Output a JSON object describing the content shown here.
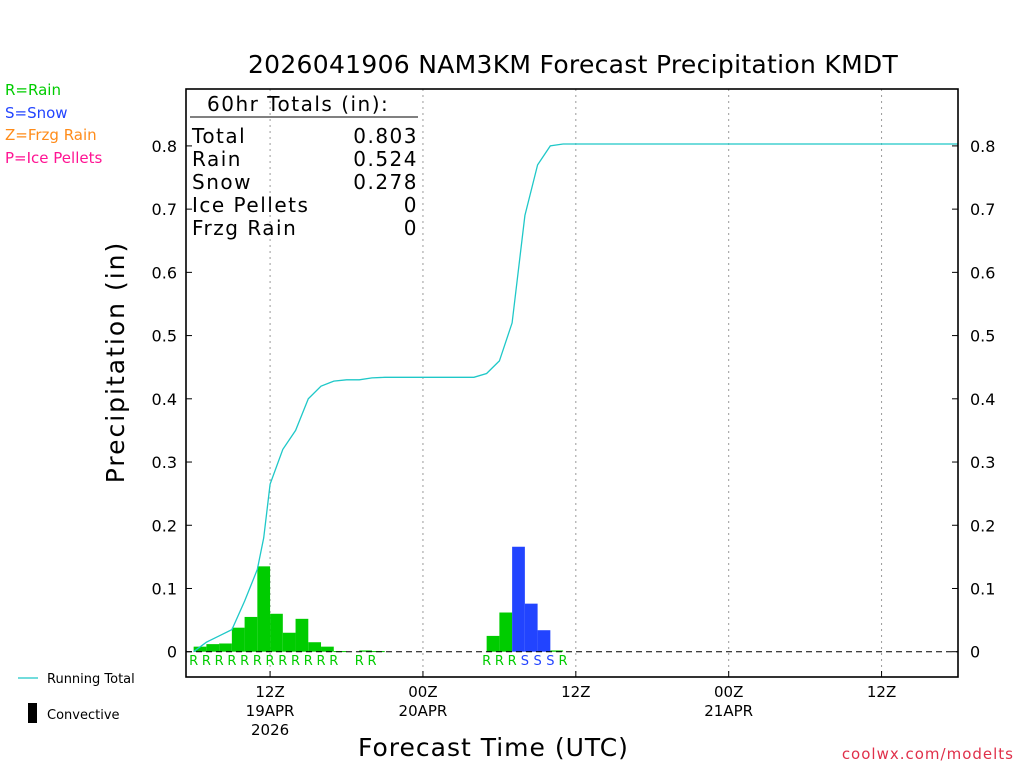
{
  "header": {
    "title": "2026041906 NAM3KM Forecast Precipitation KMDT"
  },
  "ptype_legend": [
    {
      "code": "R",
      "label": "R=Rain",
      "color": "#00cc00"
    },
    {
      "code": "S",
      "label": "S=Snow",
      "color": "#2244ff"
    },
    {
      "code": "Z",
      "label": "Z=Frzg Rain",
      "color": "#ff8c1a"
    },
    {
      "code": "P",
      "label": "P=Ice Pellets",
      "color": "#ff1493"
    }
  ],
  "totals_box": {
    "heading": "60hr Totals (in):",
    "rows": [
      {
        "label": "Total",
        "value": "0.803"
      },
      {
        "label": "Rain",
        "value": "0.524"
      },
      {
        "label": "Snow",
        "value": "0.278"
      },
      {
        "label": "Ice Pellets",
        "value": "0"
      },
      {
        "label": "Frzg Rain",
        "value": "0"
      }
    ]
  },
  "bottom_legend": {
    "running_total": "Running Total",
    "convective": "Convective"
  },
  "credit": "coolwx.com/modelts",
  "colors": {
    "running_total": "#1fc8c8",
    "rain": "#00cc00",
    "snow": "#2244ff",
    "frame": "#000000"
  },
  "chart_data": {
    "type": "bar",
    "title": "2026041906 NAM3KM Forecast Precipitation KMDT",
    "xlabel": "Forecast Time (UTC)",
    "ylabel": "Precipitation (in)",
    "ylim": [
      -0.04,
      0.89
    ],
    "yticks": [
      0,
      0.1,
      0.2,
      0.3,
      0.4,
      0.5,
      0.6,
      0.7,
      0.8
    ],
    "ytick_labels": [
      "0",
      "0.1",
      "0.2",
      "0.3",
      "0.4",
      "0.5",
      "0.6",
      "0.7",
      "0.8"
    ],
    "x_unit": "forecast hour",
    "xlim": [
      -0.6,
      60
    ],
    "xticks": [
      {
        "hour": 6,
        "lines": [
          "12Z",
          "19APR",
          "2026"
        ]
      },
      {
        "hour": 18,
        "lines": [
          "00Z",
          "20APR"
        ]
      },
      {
        "hour": 30,
        "lines": [
          "12Z"
        ]
      },
      {
        "hour": 42,
        "lines": [
          "00Z",
          "21APR"
        ]
      },
      {
        "hour": 54,
        "lines": [
          "12Z"
        ]
      }
    ],
    "grid": "vertical-dotted",
    "hourly_bars": [
      {
        "hour": 1,
        "value": 0.008,
        "type": "R"
      },
      {
        "hour": 2,
        "value": 0.012,
        "type": "R"
      },
      {
        "hour": 3,
        "value": 0.013,
        "type": "R"
      },
      {
        "hour": 4,
        "value": 0.038,
        "type": "R"
      },
      {
        "hour": 5,
        "value": 0.055,
        "type": "R"
      },
      {
        "hour": 6,
        "value": 0.135,
        "type": "R"
      },
      {
        "hour": 7,
        "value": 0.06,
        "type": "R"
      },
      {
        "hour": 8,
        "value": 0.03,
        "type": "R"
      },
      {
        "hour": 9,
        "value": 0.052,
        "type": "R"
      },
      {
        "hour": 10,
        "value": 0.015,
        "type": "R"
      },
      {
        "hour": 11,
        "value": 0.008,
        "type": "R"
      },
      {
        "hour": 12,
        "value": 0.001,
        "type": "R"
      },
      {
        "hour": 14,
        "value": 0.002,
        "type": "R"
      },
      {
        "hour": 15,
        "value": 0.001,
        "type": "R"
      },
      {
        "hour": 24,
        "value": 0.025,
        "type": "R"
      },
      {
        "hour": 25,
        "value": 0.062,
        "type": "R"
      },
      {
        "hour": 26,
        "value": 0.166,
        "type": "S"
      },
      {
        "hour": 27,
        "value": 0.076,
        "type": "S"
      },
      {
        "hour": 28,
        "value": 0.034,
        "type": "S"
      },
      {
        "hour": 29,
        "value": 0.002,
        "type": "R"
      }
    ],
    "ptype_row": [
      {
        "hour": 0,
        "type": "R"
      },
      {
        "hour": 1,
        "type": "R"
      },
      {
        "hour": 2,
        "type": "R"
      },
      {
        "hour": 3,
        "type": "R"
      },
      {
        "hour": 4,
        "type": "R"
      },
      {
        "hour": 5,
        "type": "R"
      },
      {
        "hour": 6,
        "type": "R"
      },
      {
        "hour": 7,
        "type": "R"
      },
      {
        "hour": 8,
        "type": "R"
      },
      {
        "hour": 9,
        "type": "R"
      },
      {
        "hour": 10,
        "type": "R"
      },
      {
        "hour": 11,
        "type": "R"
      },
      {
        "hour": 13,
        "type": "R"
      },
      {
        "hour": 14,
        "type": "R"
      },
      {
        "hour": 23,
        "type": "R"
      },
      {
        "hour": 24,
        "type": "R"
      },
      {
        "hour": 25,
        "type": "R"
      },
      {
        "hour": 26,
        "type": "S"
      },
      {
        "hour": 27,
        "type": "S"
      },
      {
        "hour": 28,
        "type": "S"
      },
      {
        "hour": 29,
        "type": "R"
      }
    ],
    "running_total": {
      "name": "Running Total",
      "x": [
        0,
        1,
        2,
        3,
        4,
        5,
        5.5,
        6,
        7,
        8,
        9,
        10,
        11,
        12,
        13,
        14,
        15,
        18,
        21,
        22,
        23,
        24,
        25,
        26,
        27,
        28,
        29,
        30,
        40,
        50,
        60
      ],
      "y": [
        0,
        0.015,
        0.025,
        0.035,
        0.08,
        0.13,
        0.18,
        0.265,
        0.32,
        0.35,
        0.4,
        0.42,
        0.428,
        0.43,
        0.43,
        0.433,
        0.434,
        0.434,
        0.434,
        0.434,
        0.44,
        0.46,
        0.52,
        0.69,
        0.77,
        0.8,
        0.803,
        0.803,
        0.803,
        0.803,
        0.803
      ]
    }
  }
}
